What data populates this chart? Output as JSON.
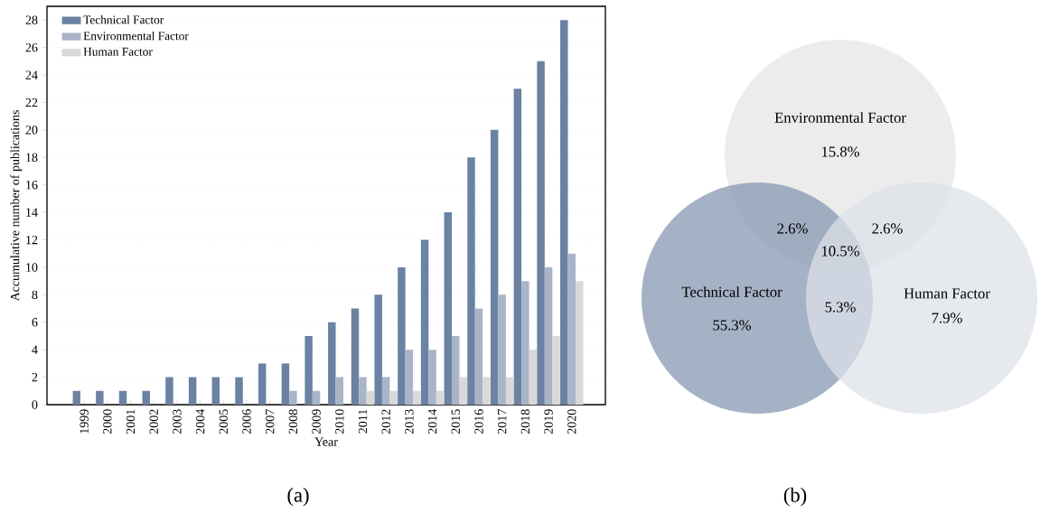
{
  "chart_data": [
    {
      "type": "bar",
      "xlabel": "Year",
      "ylabel": "Accumulative number of publications",
      "categories": [
        "1999",
        "2000",
        "2001",
        "2002",
        "2003",
        "2004",
        "2005",
        "2006",
        "2007",
        "2008",
        "2009",
        "2010",
        "2011",
        "2012",
        "2013",
        "2014",
        "2015",
        "2016",
        "2017",
        "2018",
        "2019",
        "2020"
      ],
      "series": [
        {
          "name": "Technical Factor",
          "color": "#6c82a3",
          "values": [
            1,
            1,
            1,
            1,
            2,
            2,
            2,
            2,
            3,
            3,
            5,
            6,
            7,
            8,
            10,
            12,
            14,
            18,
            20,
            23,
            25,
            28
          ]
        },
        {
          "name": "Environmental Factor",
          "color": "#a9b4c8",
          "values": [
            0,
            0,
            0,
            0,
            0,
            0,
            0,
            0,
            0,
            1,
            1,
            2,
            2,
            2,
            4,
            4,
            5,
            7,
            8,
            9,
            10,
            11
          ]
        },
        {
          "name": "Human Factor",
          "color": "#d9d9d9",
          "values": [
            0,
            0,
            0,
            0,
            0,
            0,
            0,
            0,
            0,
            0,
            0,
            0,
            1,
            1,
            1,
            1,
            2,
            2,
            2,
            4,
            5,
            9
          ]
        }
      ],
      "ylim": [
        0,
        29
      ],
      "yticks": [
        0,
        2,
        4,
        6,
        8,
        10,
        12,
        14,
        16,
        18,
        20,
        22,
        24,
        26,
        28
      ],
      "grid": "y",
      "legend": "top left",
      "annotations": [
        "(a)"
      ]
    },
    {
      "type": "other",
      "colors": [
        "#e6e6e6",
        "#8797b1",
        "#dde1e8"
      ],
      "annotations": [
        "Environmental Factor",
        "15.8%",
        "Technical Factor",
        "55.3%",
        "Human Factor",
        "7.9%",
        "2.6%",
        "2.6%",
        "10.5%",
        "5.3%",
        "(b)"
      ]
    }
  ]
}
